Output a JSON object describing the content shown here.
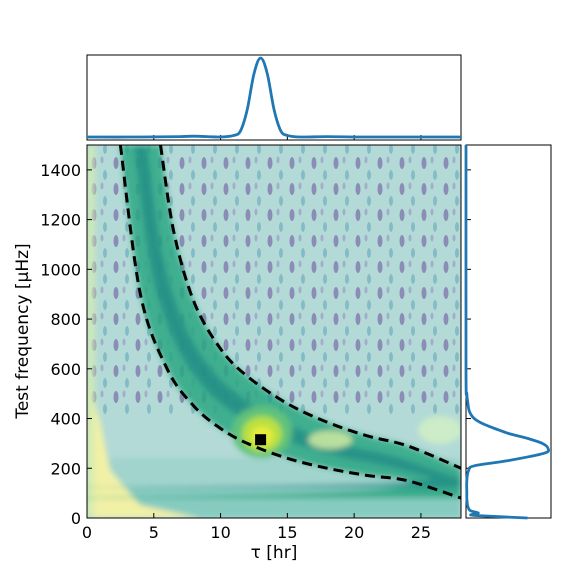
{
  "chart_data": [
    {
      "type": "heatmap",
      "panel": "main",
      "xlabel": "τ [hr]",
      "ylabel": "Test frequency [μHz]",
      "xlim": [
        0,
        28
      ],
      "ylim": [
        0,
        1500
      ],
      "xticks": [
        0,
        5,
        10,
        15,
        20,
        25
      ],
      "yticks": [
        0,
        200,
        400,
        600,
        800,
        1000,
        1200,
        1400
      ],
      "colormap": "viridis",
      "background_color": "#b3dad7",
      "contour_levels_colors": [
        "#f3f3a8",
        "#c2eac6",
        "#98d8c4",
        "#4cbf8a",
        "#2b9e86",
        "#1f7f86",
        "#c6e9a8",
        "#b8e043",
        "#d9e94f",
        "#c9e33a"
      ],
      "guide_curves": [
        {
          "style": "dashed",
          "color": "#000000",
          "x": [
            2.5,
            4.0,
            6.0,
            8.0,
            10.0,
            12.0,
            15.0,
            18.0,
            21.0,
            24.0,
            28.0
          ],
          "y": [
            1500,
            900,
            600,
            450,
            360,
            300,
            240,
            200,
            171,
            150,
            80
          ]
        },
        {
          "style": "dashed",
          "color": "#000000",
          "x": [
            5.5,
            6.5,
            8.0,
            10.0,
            12.0,
            15.0,
            18.0,
            21.0,
            24.0,
            28.0
          ],
          "y": [
            1500,
            1150,
            870,
            680,
            570,
            460,
            385,
            330,
            290,
            200
          ]
        }
      ],
      "marker": {
        "shape": "square",
        "color": "#000000",
        "x": 13.0,
        "y": 315
      }
    },
    {
      "type": "line",
      "panel": "top",
      "x": [
        0,
        4,
        7,
        8,
        9,
        10,
        11,
        11.5,
        12,
        12.5,
        13.0,
        13.5,
        14,
        14.5,
        15,
        16,
        18,
        20,
        24,
        28
      ],
      "values": [
        0.0,
        0.0,
        0.005,
        0.01,
        0.005,
        0.0,
        0.02,
        0.08,
        0.35,
        0.8,
        1.0,
        0.8,
        0.35,
        0.08,
        0.02,
        0.0,
        0.005,
        0.0,
        0.0,
        0.0
      ],
      "xlim": [
        0,
        28
      ],
      "color": "#1f77b4"
    },
    {
      "type": "line",
      "panel": "right",
      "y": [
        0,
        10,
        15,
        20,
        30,
        50,
        80,
        100,
        150,
        190,
        210,
        230,
        260,
        280,
        300,
        320,
        340,
        360,
        380,
        400,
        430,
        470,
        500,
        600,
        1500
      ],
      "values": [
        0.75,
        0.12,
        0.08,
        0.15,
        0.05,
        0.02,
        0.01,
        0.01,
        0.01,
        0.03,
        0.1,
        0.5,
        0.95,
        1.0,
        0.93,
        0.75,
        0.52,
        0.35,
        0.2,
        0.1,
        0.04,
        0.02,
        0.01,
        0.0,
        0.0
      ],
      "ylim": [
        0,
        1500
      ],
      "color": "#1f77b4"
    }
  ]
}
